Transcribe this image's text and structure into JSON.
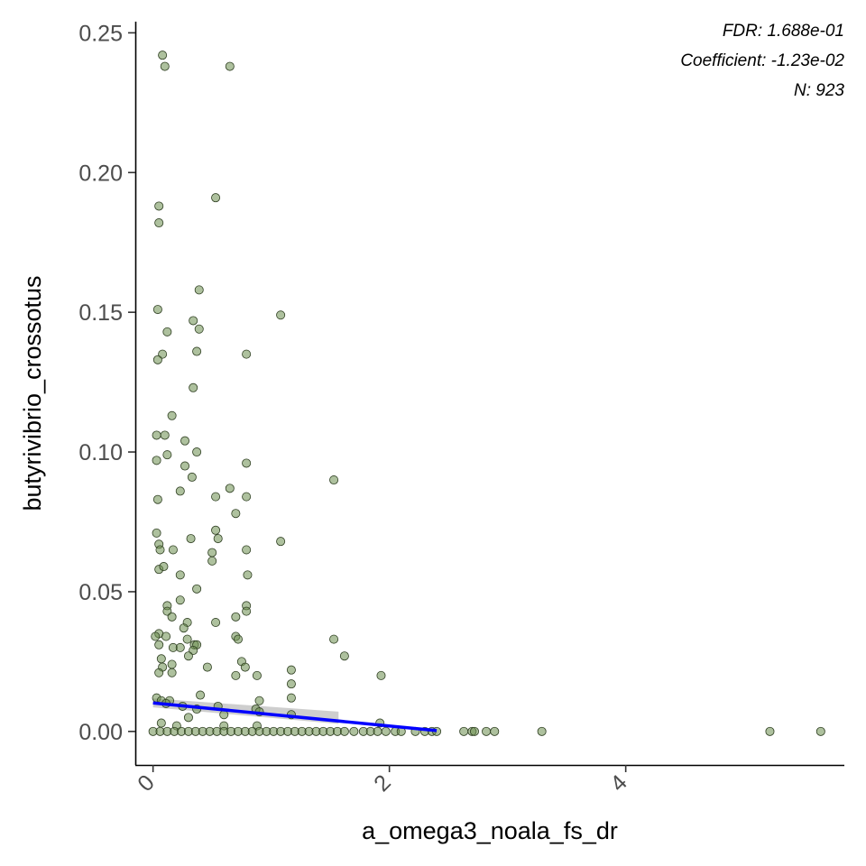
{
  "chart_data": {
    "type": "scatter",
    "title": "",
    "xlabel": "a_omega3_noala_fs_dr",
    "ylabel": "butyrivibrio_crossotus",
    "xlim": [
      -0.15,
      5.85
    ],
    "ylim": [
      -0.012,
      0.254
    ],
    "x_ticks": [
      0,
      2,
      4
    ],
    "x_tick_labels": [
      "0",
      "2",
      "4"
    ],
    "y_ticks": [
      0.0,
      0.05,
      0.1,
      0.15,
      0.2,
      0.25
    ],
    "y_tick_labels": [
      "0.00",
      "0.05",
      "0.10",
      "0.15",
      "0.20",
      "0.25"
    ],
    "grid": false,
    "legend": "none",
    "annotations": [
      "FDR: 1.688e-01",
      "Coefficient: -1.23e-02",
      "N: 923"
    ],
    "colors": {
      "point_fill": "#6b8e4e",
      "point_stroke": "#2f3f22",
      "fit_line": "#0000ff",
      "ribbon": "#bdbdbd"
    },
    "fit": {
      "x": [
        0.0,
        2.4
      ],
      "y": [
        0.0102,
        0.0003
      ]
    },
    "ribbon": {
      "x": [
        0.0,
        1.57
      ],
      "upper": [
        0.0118,
        0.0071
      ],
      "lower": [
        0.0086,
        0.0027
      ]
    },
    "points": [
      [
        0.08,
        0.242
      ],
      [
        0.1,
        0.238
      ],
      [
        0.65,
        0.238
      ],
      [
        0.53,
        0.191
      ],
      [
        0.05,
        0.188
      ],
      [
        0.05,
        0.182
      ],
      [
        0.04,
        0.151
      ],
      [
        1.08,
        0.149
      ],
      [
        0.34,
        0.147
      ],
      [
        0.12,
        0.143
      ],
      [
        0.39,
        0.144
      ],
      [
        0.39,
        0.158
      ],
      [
        0.08,
        0.135
      ],
      [
        0.04,
        0.133
      ],
      [
        0.37,
        0.136
      ],
      [
        0.79,
        0.135
      ],
      [
        0.34,
        0.123
      ],
      [
        0.16,
        0.113
      ],
      [
        0.03,
        0.106
      ],
      [
        0.1,
        0.106
      ],
      [
        0.27,
        0.104
      ],
      [
        0.12,
        0.099
      ],
      [
        0.37,
        0.1
      ],
      [
        0.03,
        0.097
      ],
      [
        0.27,
        0.095
      ],
      [
        0.33,
        0.091
      ],
      [
        0.79,
        0.096
      ],
      [
        1.53,
        0.09
      ],
      [
        0.65,
        0.087
      ],
      [
        0.23,
        0.086
      ],
      [
        0.53,
        0.084
      ],
      [
        0.79,
        0.084
      ],
      [
        0.04,
        0.083
      ],
      [
        0.7,
        0.078
      ],
      [
        0.03,
        0.071
      ],
      [
        0.53,
        0.072
      ],
      [
        0.05,
        0.067
      ],
      [
        0.32,
        0.069
      ],
      [
        0.55,
        0.069
      ],
      [
        0.06,
        0.065
      ],
      [
        0.17,
        0.065
      ],
      [
        1.08,
        0.068
      ],
      [
        0.5,
        0.064
      ],
      [
        0.5,
        0.061
      ],
      [
        0.79,
        0.065
      ],
      [
        0.05,
        0.058
      ],
      [
        0.09,
        0.059
      ],
      [
        0.23,
        0.056
      ],
      [
        0.8,
        0.056
      ],
      [
        0.37,
        0.051
      ],
      [
        0.23,
        0.047
      ],
      [
        0.12,
        0.045
      ],
      [
        0.12,
        0.043
      ],
      [
        0.79,
        0.045
      ],
      [
        0.79,
        0.043
      ],
      [
        0.7,
        0.041
      ],
      [
        0.16,
        0.041
      ],
      [
        0.53,
        0.039
      ],
      [
        0.29,
        0.039
      ],
      [
        0.26,
        0.037
      ],
      [
        0.05,
        0.035
      ],
      [
        0.02,
        0.034
      ],
      [
        0.11,
        0.034
      ],
      [
        0.29,
        0.033
      ],
      [
        0.7,
        0.034
      ],
      [
        0.72,
        0.033
      ],
      [
        1.53,
        0.033
      ],
      [
        0.05,
        0.031
      ],
      [
        0.17,
        0.03
      ],
      [
        0.23,
        0.03
      ],
      [
        0.35,
        0.031
      ],
      [
        0.37,
        0.031
      ],
      [
        0.34,
        0.029
      ],
      [
        0.3,
        0.027
      ],
      [
        0.07,
        0.026
      ],
      [
        1.62,
        0.027
      ],
      [
        0.75,
        0.025
      ],
      [
        0.16,
        0.024
      ],
      [
        0.78,
        0.023
      ],
      [
        0.46,
        0.023
      ],
      [
        0.08,
        0.023
      ],
      [
        1.17,
        0.022
      ],
      [
        0.05,
        0.021
      ],
      [
        0.16,
        0.021
      ],
      [
        0.7,
        0.02
      ],
      [
        0.88,
        0.02
      ],
      [
        1.93,
        0.02
      ],
      [
        1.17,
        0.017
      ],
      [
        0.4,
        0.013
      ],
      [
        0.9,
        0.011
      ],
      [
        0.03,
        0.012
      ],
      [
        0.07,
        0.011
      ],
      [
        0.14,
        0.011
      ],
      [
        0.11,
        0.01
      ],
      [
        0.25,
        0.009
      ],
      [
        0.55,
        0.009
      ],
      [
        0.87,
        0.008
      ],
      [
        1.17,
        0.012
      ],
      [
        0.37,
        0.008
      ],
      [
        0.9,
        0.007
      ],
      [
        1.17,
        0.006
      ],
      [
        0.6,
        0.006
      ],
      [
        0.3,
        0.005
      ],
      [
        0.07,
        0.003
      ],
      [
        1.92,
        0.003
      ],
      [
        0.2,
        0.002
      ],
      [
        0.6,
        0.002
      ],
      [
        0.88,
        0.002
      ],
      [
        0.0,
        0
      ],
      [
        0.06,
        0
      ],
      [
        0.12,
        0
      ],
      [
        0.18,
        0
      ],
      [
        0.24,
        0
      ],
      [
        0.3,
        0
      ],
      [
        0.36,
        0
      ],
      [
        0.42,
        0
      ],
      [
        0.48,
        0
      ],
      [
        0.54,
        0
      ],
      [
        0.6,
        0
      ],
      [
        0.66,
        0
      ],
      [
        0.72,
        0
      ],
      [
        0.78,
        0
      ],
      [
        0.84,
        0
      ],
      [
        0.9,
        0
      ],
      [
        0.96,
        0
      ],
      [
        1.02,
        0
      ],
      [
        1.08,
        0
      ],
      [
        1.14,
        0
      ],
      [
        1.2,
        0
      ],
      [
        1.26,
        0
      ],
      [
        1.32,
        0
      ],
      [
        1.38,
        0
      ],
      [
        1.44,
        0
      ],
      [
        1.5,
        0
      ],
      [
        1.56,
        0
      ],
      [
        1.62,
        0
      ],
      [
        1.7,
        0
      ],
      [
        1.78,
        0
      ],
      [
        1.84,
        0
      ],
      [
        1.9,
        0
      ],
      [
        1.97,
        0
      ],
      [
        2.05,
        0
      ],
      [
        2.1,
        0
      ],
      [
        2.22,
        0
      ],
      [
        2.3,
        0
      ],
      [
        2.36,
        0
      ],
      [
        2.4,
        0
      ],
      [
        2.63,
        0
      ],
      [
        2.7,
        0
      ],
      [
        2.72,
        0
      ],
      [
        2.82,
        0
      ],
      [
        2.89,
        0
      ],
      [
        3.29,
        0
      ],
      [
        5.22,
        0
      ],
      [
        5.65,
        0
      ]
    ]
  }
}
